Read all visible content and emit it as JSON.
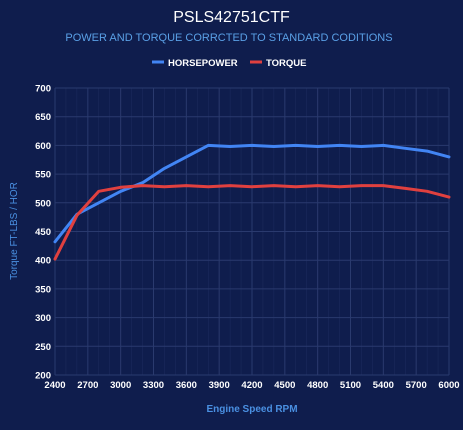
{
  "chart_data": {
    "type": "line",
    "title": "PSLS42751CTF",
    "subtitle": "POWER AND TORQUE CORRCTED TO STANDARD CODITIONS",
    "xlabel": "Engine Speed RPM",
    "ylabel": "Torque FT-LBS / HOR",
    "xlim": [
      2400,
      6000
    ],
    "ylim": [
      200,
      700
    ],
    "x_ticks": [
      "2400",
      "2700",
      "3000",
      "3300",
      "3600",
      "3900",
      "4200",
      "4500",
      "4800",
      "5100",
      "5400",
      "5700",
      "6000"
    ],
    "y_ticks": [
      "200",
      "250",
      "300",
      "350",
      "400",
      "450",
      "500",
      "550",
      "600",
      "650",
      "700"
    ],
    "grid": true,
    "legend_position": "top-center",
    "x": [
      2400,
      2600,
      2800,
      3000,
      3200,
      3400,
      3600,
      3800,
      4000,
      4200,
      4400,
      4600,
      4800,
      5000,
      5200,
      5400,
      5600,
      5800,
      6000
    ],
    "series": [
      {
        "name": "HORSEPOWER",
        "color": "#4285f4",
        "values": [
          432,
          480,
          500,
          520,
          535,
          560,
          580,
          600,
          598,
          600,
          598,
          600,
          598,
          600,
          598,
          600,
          595,
          590,
          580
        ]
      },
      {
        "name": "TORQUE",
        "color": "#e0403f",
        "values": [
          402,
          478,
          520,
          527,
          530,
          528,
          530,
          528,
          530,
          528,
          530,
          528,
          530,
          528,
          530,
          530,
          525,
          520,
          510
        ]
      }
    ]
  },
  "colors": {
    "background": "#0f1d4d",
    "grid": "#2a3a6e",
    "title": "#ffffff",
    "subtitle": "#5aa0e6",
    "axis_label": "#4a90e2",
    "tick": "#ffffff"
  }
}
